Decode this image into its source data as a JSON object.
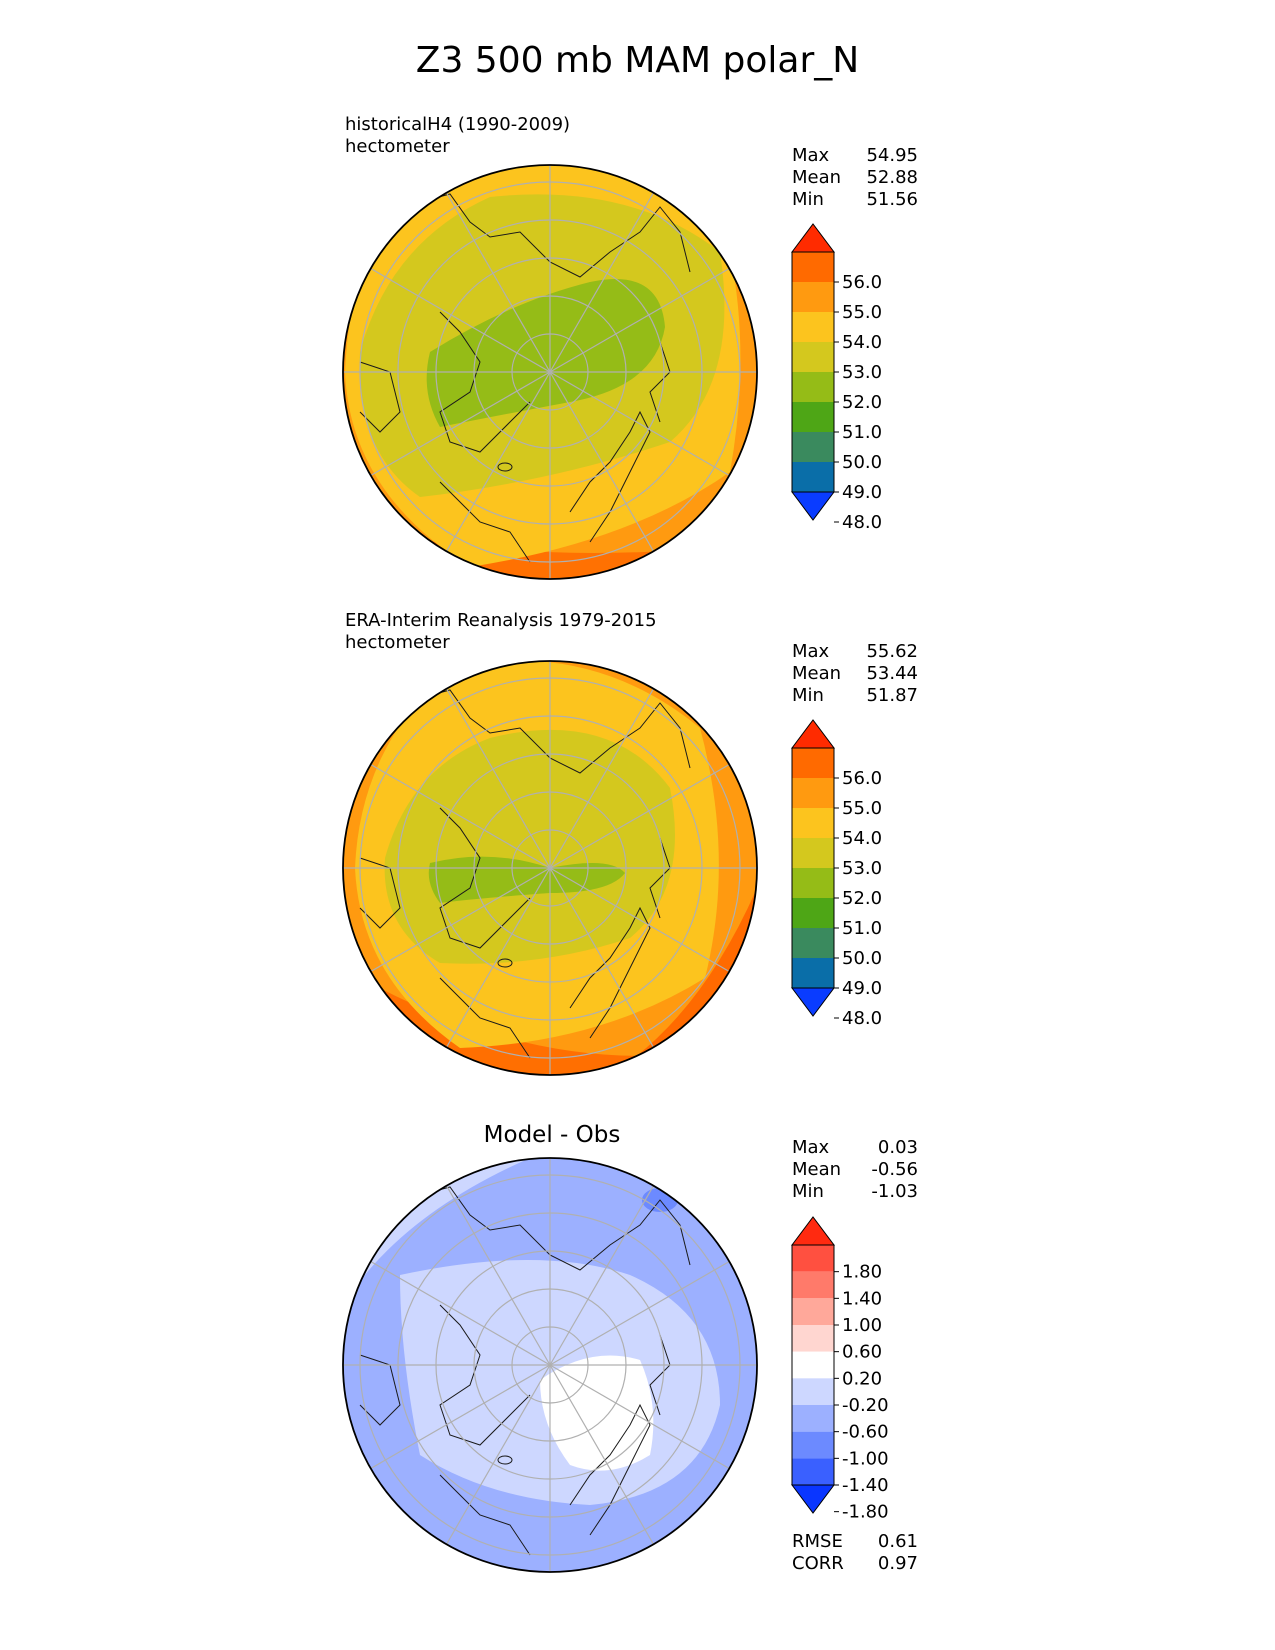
{
  "title": "Z3 500 mb MAM polar_N",
  "panels": [
    {
      "line1": "historicalH4 (1990-2009)",
      "line2": "hectometer",
      "stats": [
        {
          "label": "Max",
          "value": "54.95"
        },
        {
          "label": "Mean",
          "value": "52.88"
        },
        {
          "label": "Min",
          "value": "51.56"
        }
      ]
    },
    {
      "line1": "ERA-Interim Reanalysis 1979-2015",
      "line2": "hectometer",
      "stats": [
        {
          "label": "Max",
          "value": "55.62"
        },
        {
          "label": "Mean",
          "value": "53.44"
        },
        {
          "label": "Min",
          "value": "51.87"
        }
      ]
    },
    {
      "center_title": "Model - Obs",
      "stats": [
        {
          "label": "Max",
          "value": "0.03"
        },
        {
          "label": "Mean",
          "value": "-0.56"
        },
        {
          "label": "Min",
          "value": "-1.03"
        }
      ],
      "metrics": [
        {
          "label": "RMSE",
          "value": "0.61"
        },
        {
          "label": "CORR",
          "value": "0.97"
        }
      ]
    }
  ],
  "chart_data": [
    {
      "type": "heatmap",
      "projection": "north polar stereographic",
      "panel": "historicalH4 (1990-2009)",
      "units": "hectometer",
      "max": 54.95,
      "mean": 52.88,
      "min": 51.56,
      "colorbar": {
        "ticks": [
          "56.0",
          "55.0",
          "54.0",
          "53.0",
          "52.0",
          "51.0",
          "50.0",
          "49.0",
          "48.0"
        ],
        "colors": [
          "#ff2b00",
          "#ff6a00",
          "#ff9a10",
          "#fcc41e",
          "#d4c81e",
          "#95bc17",
          "#4ea616",
          "#3a8a5e",
          "#0a6ea8",
          "#0a3cff"
        ],
        "extend": "both"
      }
    },
    {
      "type": "heatmap",
      "projection": "north polar stereographic",
      "panel": "ERA-Interim Reanalysis 1979-2015",
      "units": "hectometer",
      "max": 55.62,
      "mean": 53.44,
      "min": 51.87,
      "colorbar": {
        "ticks": [
          "56.0",
          "55.0",
          "54.0",
          "53.0",
          "52.0",
          "51.0",
          "50.0",
          "49.0",
          "48.0"
        ],
        "colors": [
          "#ff2b00",
          "#ff6a00",
          "#ff9a10",
          "#fcc41e",
          "#d4c81e",
          "#95bc17",
          "#4ea616",
          "#3a8a5e",
          "#0a6ea8",
          "#0a3cff"
        ],
        "extend": "both"
      }
    },
    {
      "type": "heatmap",
      "projection": "north polar stereographic",
      "panel": "Model - Obs",
      "max": 0.03,
      "mean": -0.56,
      "min": -1.03,
      "rmse": 0.61,
      "corr": 0.97,
      "colorbar": {
        "ticks": [
          "1.80",
          "1.40",
          "1.00",
          "0.60",
          "0.20",
          "-0.20",
          "-0.60",
          "-1.00",
          "-1.40",
          "-1.80"
        ],
        "colors": [
          "#ff2a10",
          "#ff5040",
          "#ff7a6a",
          "#ffa89a",
          "#ffd6d0",
          "#ffffff",
          "#cdd7ff",
          "#9cb0ff",
          "#6c8aff",
          "#3a60ff",
          "#0a36ff"
        ],
        "extend": "both"
      }
    }
  ]
}
